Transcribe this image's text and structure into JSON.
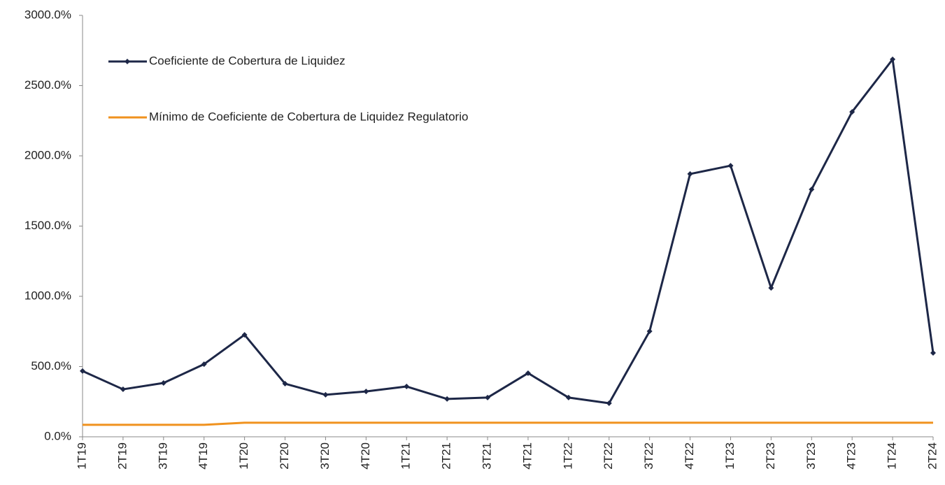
{
  "chart_data": {
    "type": "line",
    "categories": [
      "1T19",
      "2T19",
      "3T19",
      "4T19",
      "1T20",
      "2T20",
      "3T20",
      "4T20",
      "1T21",
      "2T21",
      "3T21",
      "4T21",
      "1T22",
      "2T22",
      "3T22",
      "4T22",
      "1T23",
      "2T23",
      "3T23",
      "4T23",
      "1T24",
      "2T24"
    ],
    "series": [
      {
        "name": "Coeficiente de Cobertura de Liquidez",
        "color": "#1d2747",
        "marker": "diamond",
        "values": [
          468,
          338,
          383,
          517,
          726,
          378,
          299,
          323,
          358,
          269,
          279,
          453,
          279,
          239,
          751,
          1871,
          1930,
          1060,
          1761,
          2313,
          2687,
          597
        ]
      },
      {
        "name": "Mínimo de Coeficiente de Cobertura de Liquidez Regulatorio",
        "color": "#f0921e",
        "values": [
          85,
          85,
          85,
          85,
          100,
          100,
          100,
          100,
          100,
          100,
          100,
          100,
          100,
          100,
          100,
          100,
          100,
          100,
          100,
          100,
          100,
          100
        ]
      }
    ],
    "ylim": [
      0,
      3000
    ],
    "yticks": [
      {
        "value": 0,
        "label": "0.0%"
      },
      {
        "value": 500,
        "label": "500.0%"
      },
      {
        "value": 1000,
        "label": "1000.0%"
      },
      {
        "value": 1500,
        "label": "1500.0%"
      },
      {
        "value": 2000,
        "label": "2000.0%"
      },
      {
        "value": 2500,
        "label": "2500.0%"
      },
      {
        "value": 3000,
        "label": "3000.0%"
      }
    ],
    "grid": false,
    "legend": "upper left"
  }
}
